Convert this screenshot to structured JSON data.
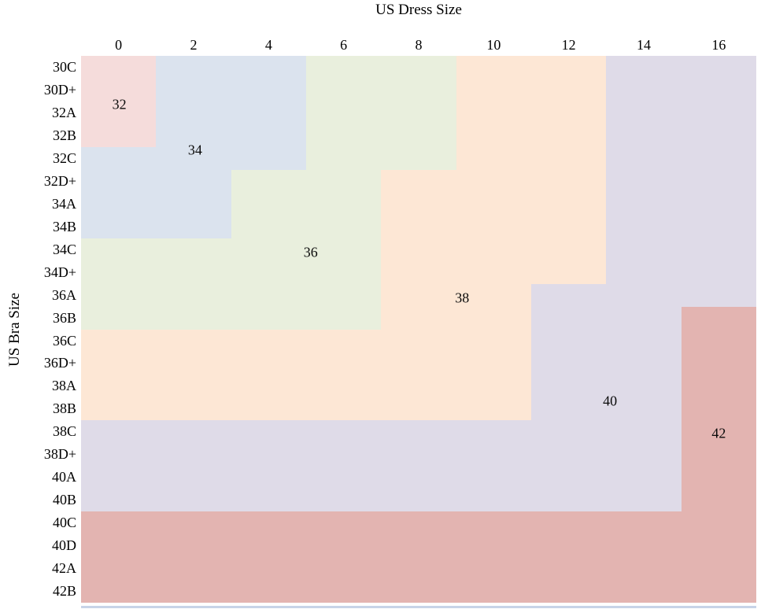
{
  "figure": {
    "title": "US Dress Size",
    "y_axis_title": "US Bra Size"
  },
  "chart_data": {
    "type": "heatmap",
    "title": "US Dress Size",
    "xlabel": "US Dress Size",
    "ylabel": "US Bra Size",
    "x_tick_labels": [
      "0",
      "2",
      "4",
      "6",
      "8",
      "10",
      "12",
      "14",
      "16"
    ],
    "y_tick_labels": [
      "30C",
      "30D+",
      "32A",
      "32B",
      "32C",
      "32D+",
      "34A",
      "34B",
      "34C",
      "34D+",
      "36A",
      "36B",
      "36C",
      "36D+",
      "38A",
      "38B",
      "38C",
      "38D+",
      "40A",
      "40B",
      "40C",
      "40D",
      "42A",
      "42B"
    ],
    "grid": false,
    "legend_position": "none",
    "baseline_color": "#c7d3e8",
    "regions": [
      {
        "label": "32",
        "color": "#f5dcdb",
        "rects": [
          [
            0,
            1,
            0,
            4
          ]
        ],
        "label_pos": {
          "col": 0.51,
          "row": 2.14
        }
      },
      {
        "label": "34",
        "color": "#dbe3ee",
        "rects": [
          [
            1,
            3,
            0,
            4
          ],
          [
            0,
            3,
            4,
            5
          ],
          [
            0,
            2,
            5,
            8
          ]
        ],
        "label_pos": {
          "col": 1.52,
          "row": 4.15
        }
      },
      {
        "label": "36",
        "color": "#e9efdd",
        "rects": [
          [
            3,
            5,
            0,
            5
          ],
          [
            2,
            4,
            5,
            8
          ],
          [
            0,
            4,
            8,
            12
          ]
        ],
        "label_pos": {
          "col": 3.06,
          "row": 8.63
        }
      },
      {
        "label": "38",
        "color": "#fde7d5",
        "rects": [
          [
            5,
            7,
            0,
            5
          ],
          [
            4,
            7,
            5,
            10
          ],
          [
            4,
            6,
            10,
            12
          ],
          [
            0,
            6,
            12,
            16
          ]
        ],
        "label_pos": {
          "col": 5.08,
          "row": 10.63
        }
      },
      {
        "label": "40",
        "color": "#dfdbe8",
        "rects": [
          [
            7,
            9,
            0,
            10
          ],
          [
            6,
            9,
            10,
            11
          ],
          [
            6,
            8,
            11,
            16
          ],
          [
            0,
            8,
            16,
            20
          ]
        ],
        "label_pos": {
          "col": 7.05,
          "row": 15.16
        }
      },
      {
        "label": "42",
        "color": "#e3b4b1",
        "rects": [
          [
            8,
            9,
            11,
            20
          ],
          [
            0,
            9,
            20,
            24
          ]
        ],
        "label_pos": {
          "col": 8.5,
          "row": 16.57
        }
      }
    ]
  }
}
